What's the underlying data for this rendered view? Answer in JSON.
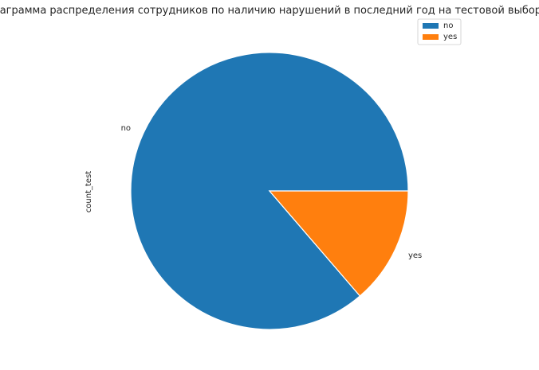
{
  "chart_data": {
    "type": "pie",
    "title": "Диаграмма распределения сотрудников по наличию нарушений в последний год на тестовой выборке",
    "ylabel": "count_test",
    "categories": [
      "no",
      "yes"
    ],
    "values": [
      86.3,
      13.7
    ],
    "colors": [
      "#1f77b4",
      "#ff7f0e"
    ],
    "legend": {
      "entries": [
        "no",
        "yes"
      ],
      "placement": "top-right"
    }
  }
}
